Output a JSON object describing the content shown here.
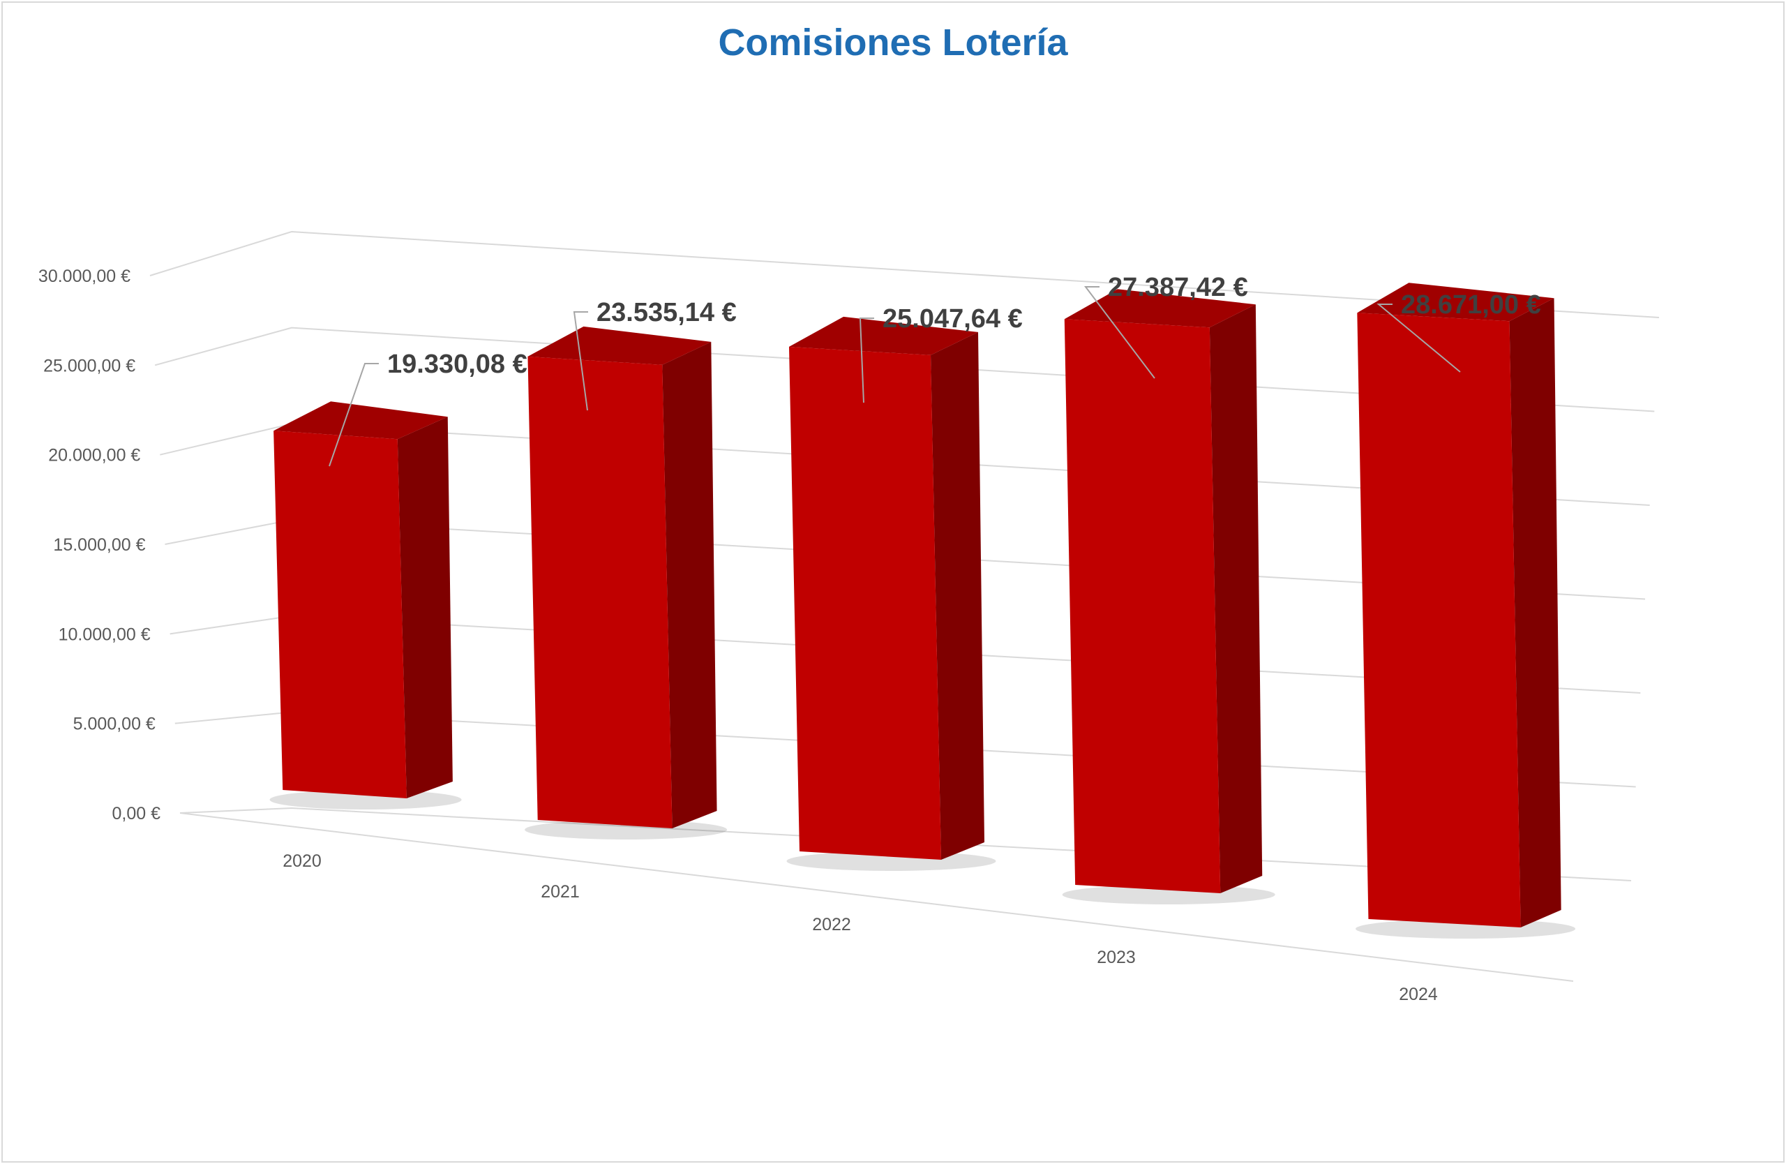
{
  "chart_data": {
    "type": "bar",
    "title": "Comisiones Lotería",
    "categories": [
      "2020",
      "2021",
      "2022",
      "2023",
      "2024"
    ],
    "values": [
      19330.08,
      23535.14,
      25047.64,
      27387.42,
      28671.0
    ],
    "data_labels": [
      "19.330,08 €",
      "23.535,14 €",
      "25.047,64 €",
      "27.387,42 €",
      "28.671,00 €"
    ],
    "ylim": [
      0,
      30000
    ],
    "yticks": [
      0,
      5000,
      10000,
      15000,
      20000,
      25000,
      30000
    ],
    "ytick_labels": [
      "0,00 €",
      "5.000,00 €",
      "10.000,00 €",
      "15.000,00 €",
      "20.000,00 €",
      "25.000,00 €",
      "30.000,00 €"
    ],
    "xlabel": "",
    "ylabel": "",
    "grid": true,
    "legend": "none",
    "colors": {
      "bar_front": "#c00000",
      "bar_side": "#7f0000",
      "bar_top": "#a00000",
      "title": "#1f6db3",
      "grid": "#d9d9d9"
    }
  }
}
